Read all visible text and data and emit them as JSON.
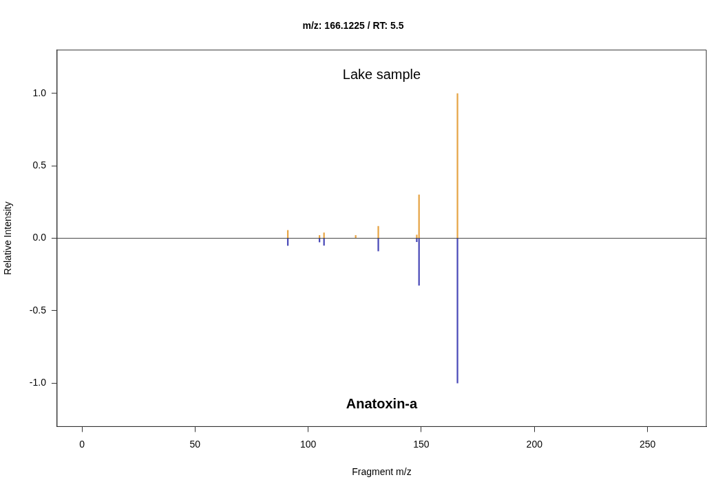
{
  "chart_data": {
    "type": "bar",
    "title": "m/z: 166.1225 / RT: 5.5",
    "xlabel": "Fragment m/z",
    "ylabel": "Relative Intensity",
    "xlim": [
      -11,
      276
    ],
    "xticks": [
      0,
      50,
      100,
      150,
      200,
      250
    ],
    "ylim": [
      -1.3,
      1.3
    ],
    "yticks": [
      {
        "value": -1,
        "label": "-1.0"
      },
      {
        "value": -0.5,
        "label": "-0.5"
      },
      {
        "value": 0,
        "label": "0.0"
      },
      {
        "value": 0.5,
        "label": "0.5"
      },
      {
        "value": 1,
        "label": "1.0"
      }
    ],
    "grid": false,
    "legend": false,
    "annotations": [
      "Lake sample",
      "Anatoxin-a"
    ],
    "ref_lines": [
      {
        "axis": "y",
        "value": 0,
        "color": "#404040"
      }
    ],
    "series": [
      {
        "color": "#e6a445",
        "x": [
          91,
          105,
          107,
          121,
          131,
          148,
          149,
          166
        ],
        "values": [
          0.055,
          0.02,
          0.038,
          0.02,
          0.083,
          0.023,
          0.3,
          1.0
        ]
      },
      {
        "color": "#4a4ab8",
        "x": [
          91,
          105,
          107,
          131,
          148,
          149,
          166
        ],
        "values": [
          -0.05,
          -0.026,
          -0.049,
          -0.088,
          -0.024,
          -0.325,
          -1.0
        ]
      }
    ]
  }
}
